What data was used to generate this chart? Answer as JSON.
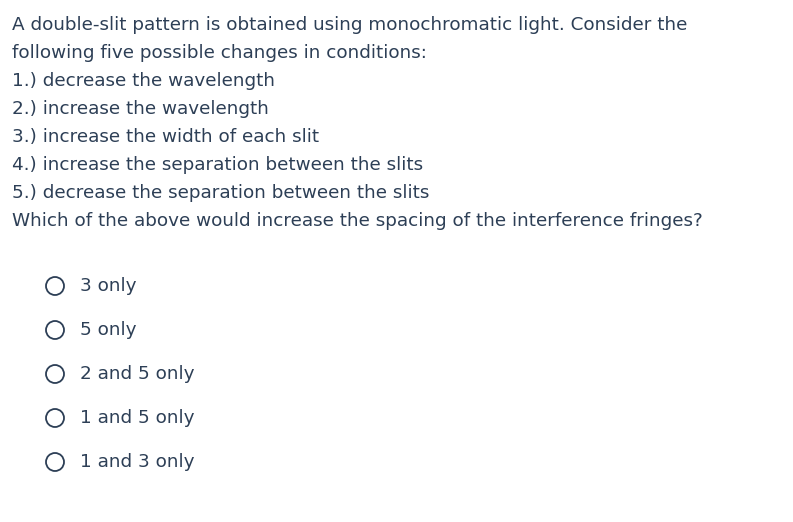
{
  "background_color": "#ffffff",
  "text_color": "#2d3f56",
  "question_lines": [
    "A double-slit pattern is obtained using monochromatic light. Consider the",
    "following five possible changes in conditions:",
    "1.) decrease the wavelength",
    "2.) increase the wavelength",
    "3.) increase the width of each slit",
    "4.) increase the separation between the slits",
    "5.) decrease the separation between the slits",
    "Which of the above would increase the spacing of the interference fringes?"
  ],
  "choices": [
    "3 only",
    "5 only",
    "2 and 5 only",
    "1 and 5 only",
    "1 and 3 only"
  ],
  "font_size_question": 13.2,
  "font_size_choices": 13.2,
  "fig_width": 7.93,
  "fig_height": 5.22,
  "dpi": 100
}
